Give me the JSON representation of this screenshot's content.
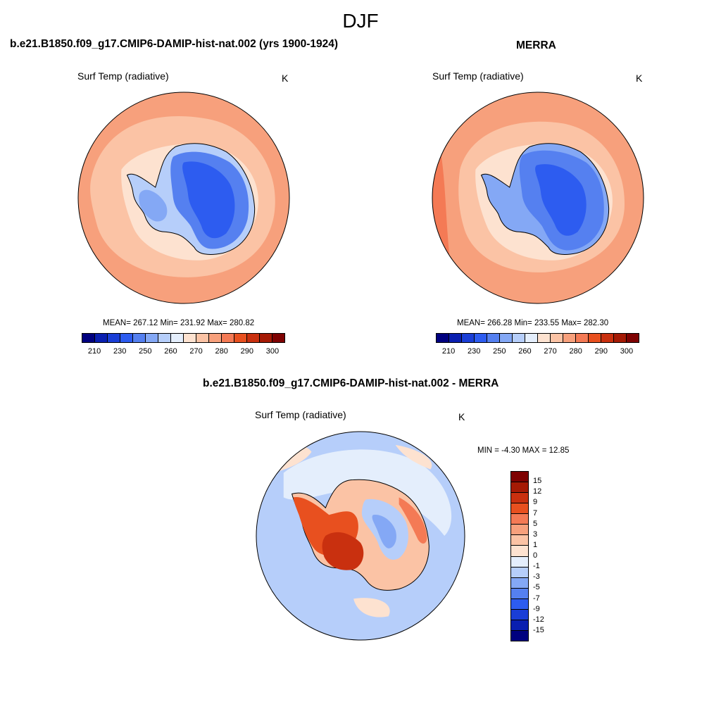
{
  "figure": {
    "title": "DJF"
  },
  "panels": [
    {
      "id": "model",
      "title": "b.e21.B1850.f09_g17.CMIP6-DAMIP-hist-nat.002 (yrs 1900-1924)",
      "variable": "Surf Temp (radiative)",
      "units": "K",
      "stats_text": "MEAN= 267.12  Min= 231.92  Max= 280.82",
      "stats": {
        "mean": 267.12,
        "min": 231.92,
        "max": 280.82
      }
    },
    {
      "id": "obs",
      "title": "MERRA",
      "variable": "Surf Temp (radiative)",
      "units": "K",
      "stats_text": "MEAN= 266.28  Min= 233.55  Max= 282.30",
      "stats": {
        "mean": 266.28,
        "min": 233.55,
        "max": 282.3
      }
    },
    {
      "id": "diff",
      "title": "b.e21.B1850.f09_g17.CMIP6-DAMIP-hist-nat.002 - MERRA",
      "variable": "Surf Temp (radiative)",
      "units": "K",
      "stats_text": "MIN =  -4.30 MAX =  12.85",
      "stats": {
        "min": -4.3,
        "max": 12.85
      }
    }
  ],
  "colorbar_abs": {
    "colors": [
      "#00007f",
      "#0a1fb0",
      "#1a3ed6",
      "#2d5cf0",
      "#5580f0",
      "#84a8f5",
      "#b6cefa",
      "#e4eefc",
      "#fde2d0",
      "#fbc3a5",
      "#f7a07c",
      "#f47a55",
      "#e8501f",
      "#c9300f",
      "#a51a05",
      "#7e0202"
    ],
    "tick_labels": [
      "210",
      "230",
      "250",
      "260",
      "270",
      "280",
      "290",
      "300"
    ]
  },
  "colorbar_diff": {
    "colors": [
      "#7e0202",
      "#a51a05",
      "#c9300f",
      "#e8501f",
      "#f47a55",
      "#f7a07c",
      "#fbc3a5",
      "#fde2d0",
      "#e4eefc",
      "#b6cefa",
      "#84a8f5",
      "#5580f0",
      "#2d5cf0",
      "#1a3ed6",
      "#0a1fb0",
      "#00007f"
    ],
    "tick_labels": [
      "15",
      "12",
      "9",
      "7",
      "5",
      "3",
      "1",
      "0",
      "-1",
      "-3",
      "-5",
      "-7",
      "-9",
      "-12",
      "-15"
    ]
  }
}
